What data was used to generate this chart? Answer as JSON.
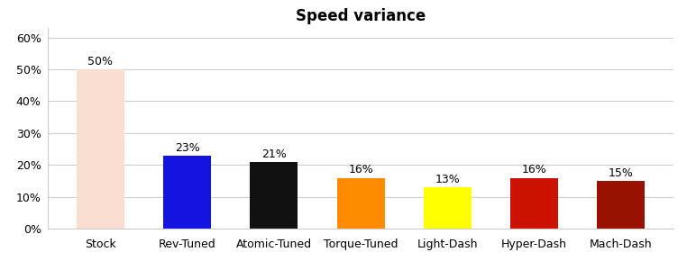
{
  "categories": [
    "Stock",
    "Rev-Tuned",
    "Atomic-Tuned",
    "Torque-Tuned",
    "Light-Dash",
    "Hyper-Dash",
    "Mach-Dash"
  ],
  "values": [
    0.5,
    0.23,
    0.21,
    0.16,
    0.13,
    0.16,
    0.15
  ],
  "labels": [
    "50%",
    "23%",
    "21%",
    "16%",
    "13%",
    "16%",
    "15%"
  ],
  "bar_colors": [
    "#f9ddd0",
    "#1414e0",
    "#111111",
    "#ff8c00",
    "#ffff00",
    "#cc1100",
    "#991100"
  ],
  "title": "Speed variance",
  "title_fontsize": 12,
  "title_fontweight": "bold",
  "ylim": [
    0,
    0.63
  ],
  "yticks": [
    0.0,
    0.1,
    0.2,
    0.3,
    0.4,
    0.5,
    0.6
  ],
  "background_color": "#ffffff",
  "grid_color": "#cccccc",
  "label_fontsize": 9,
  "tick_fontsize": 9,
  "bar_width": 0.55
}
